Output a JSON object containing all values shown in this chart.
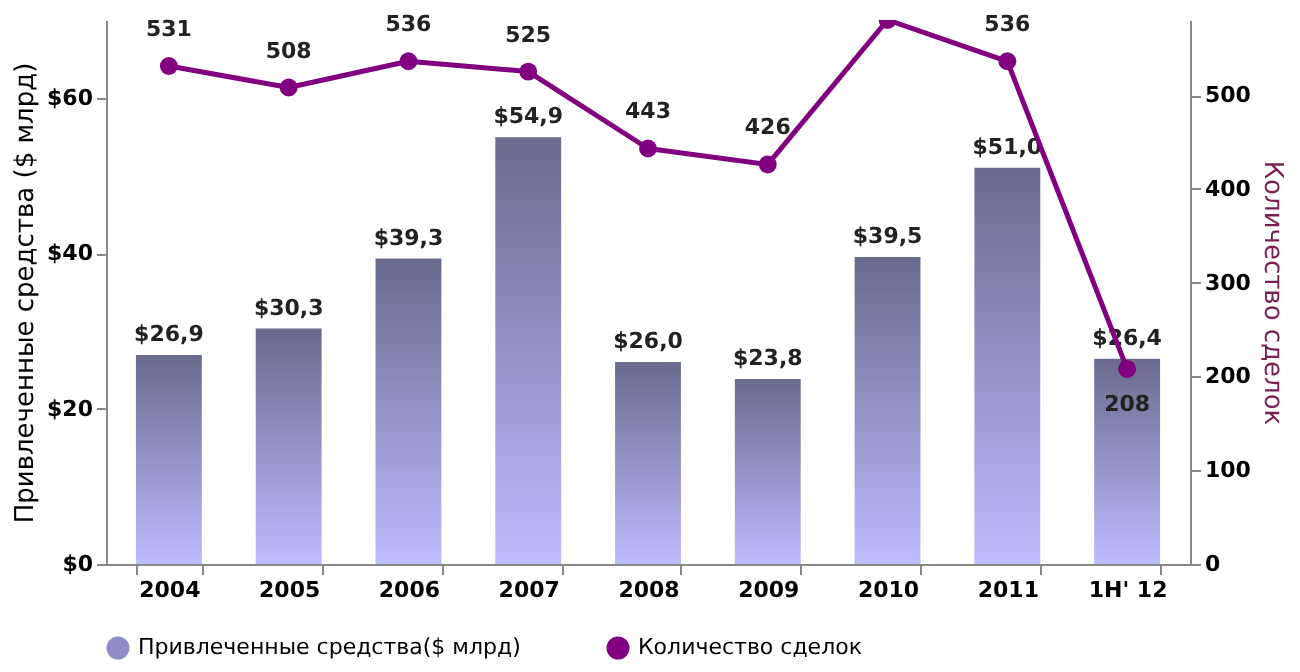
{
  "chart_data": {
    "type": "bar",
    "categories": [
      "2004",
      "2005",
      "2006",
      "2007",
      "2008",
      "2009",
      "2010",
      "2011",
      "1H' 12"
    ],
    "ylabel": "Привлеченные средства ($ млрд)",
    "y2label": "Количество сделок",
    "series": [
      {
        "name": "Привлеченные средства($ млрд)",
        "color": "#8e8ec4",
        "values": [
          26.9,
          30.3,
          39.3,
          54.9,
          26.0,
          23.8,
          39.5,
          51.0,
          26.4
        ],
        "value_labels": [
          "$26,9",
          "$30,3",
          "$39,3",
          "$54,9",
          "$26,0",
          "$23,8",
          "$39,5",
          "$51,0",
          "$26,4"
        ]
      },
      {
        "name": "Количество сделок",
        "type": "line",
        "axis": "y2",
        "color": "#800080",
        "marker": "circle",
        "line_style": "solid",
        "values": [
          531,
          508,
          536,
          525,
          443,
          426,
          580,
          536,
          208
        ],
        "value_labels": [
          "531",
          "508",
          "536",
          "525",
          "443",
          "426",
          null,
          "536",
          "208"
        ]
      }
    ],
    "ylim": [
      0,
      70
    ],
    "yticks": [
      {
        "value": 0,
        "label": "$0"
      },
      {
        "value": 20,
        "label": "$20"
      },
      {
        "value": 40,
        "label": "$40"
      },
      {
        "value": 60,
        "label": "$60"
      }
    ],
    "y2lim": [
      0,
      580
    ],
    "y2ticks": [
      0,
      100,
      200,
      300,
      400,
      500
    ],
    "grid": false,
    "legend": "bottom"
  }
}
